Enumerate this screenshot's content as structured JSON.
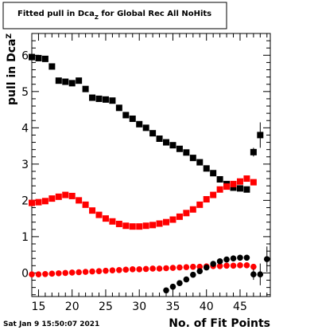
{
  "title_box": {
    "main": "Fitted pull in Dca",
    "sub": "Z",
    "rest": "  for Global Rec All NoHits"
  },
  "datestamp": "Sat Jan  9 15:50:07 2021",
  "chart_data": {
    "type": "scatter",
    "title": "Fitted pull in Dca_Z  for Global Rec All NoHits",
    "xlabel": "No. of Fit Points",
    "ylabel": "pull in Dca",
    "ylabel_sub": "Z",
    "xlim": [
      14,
      49.5
    ],
    "ylim": [
      -0.65,
      6.6
    ],
    "xticks": [
      15,
      20,
      25,
      30,
      35,
      40,
      45
    ],
    "yticks": [
      0,
      1,
      2,
      3,
      4,
      5,
      6
    ],
    "grid": false,
    "colors": {
      "black": "#000000",
      "red": "#ff0000"
    },
    "series": [
      {
        "marker": "square",
        "color": "#000000",
        "x": [
          14,
          15,
          16,
          17,
          18,
          19,
          20,
          21,
          22,
          23,
          24,
          25,
          26,
          27,
          28,
          29,
          30,
          31,
          32,
          33,
          34,
          35,
          36,
          37,
          38,
          39,
          40,
          41,
          42,
          43,
          44,
          45,
          46,
          47,
          48
        ],
        "y": [
          5.95,
          5.92,
          5.9,
          5.69,
          5.3,
          5.27,
          5.23,
          5.3,
          5.07,
          4.83,
          4.8,
          4.78,
          4.75,
          4.55,
          4.35,
          4.25,
          4.1,
          4.0,
          3.85,
          3.7,
          3.6,
          3.52,
          3.42,
          3.32,
          3.17,
          3.05,
          2.88,
          2.75,
          2.58,
          2.45,
          2.35,
          2.33,
          2.3,
          3.33,
          3.8
        ],
        "yerr": [
          0,
          0,
          0,
          0,
          0,
          0,
          0,
          0,
          0,
          0,
          0,
          0,
          0,
          0,
          0,
          0,
          0,
          0,
          0,
          0,
          0,
          0,
          0,
          0,
          0,
          0,
          0,
          0,
          0,
          0,
          0,
          0,
          0,
          0.12,
          0.35
        ]
      },
      {
        "marker": "square",
        "color": "#ff0000",
        "x": [
          14,
          15,
          16,
          17,
          18,
          19,
          20,
          21,
          22,
          23,
          24,
          25,
          26,
          27,
          28,
          29,
          30,
          31,
          32,
          33,
          34,
          35,
          36,
          37,
          38,
          39,
          40,
          41,
          42,
          43,
          44,
          45,
          46,
          47
        ],
        "y": [
          1.93,
          1.95,
          1.98,
          2.05,
          2.1,
          2.15,
          2.12,
          2.0,
          1.88,
          1.72,
          1.6,
          1.5,
          1.42,
          1.35,
          1.3,
          1.28,
          1.28,
          1.3,
          1.32,
          1.36,
          1.4,
          1.47,
          1.55,
          1.65,
          1.75,
          1.88,
          2.03,
          2.15,
          2.3,
          2.38,
          2.45,
          2.52,
          2.6,
          2.5
        ],
        "yerr": []
      },
      {
        "marker": "circle",
        "color": "#ff0000",
        "x": [
          14,
          15,
          16,
          17,
          18,
          19,
          20,
          21,
          22,
          23,
          24,
          25,
          26,
          27,
          28,
          29,
          30,
          31,
          32,
          33,
          34,
          35,
          36,
          37,
          38,
          39,
          40,
          41,
          42,
          43,
          44,
          45,
          46,
          47
        ],
        "y": [
          -0.04,
          -0.04,
          -0.03,
          -0.02,
          -0.01,
          0.0,
          0.01,
          0.02,
          0.03,
          0.04,
          0.05,
          0.06,
          0.07,
          0.08,
          0.09,
          0.1,
          0.1,
          0.11,
          0.12,
          0.12,
          0.13,
          0.14,
          0.15,
          0.16,
          0.17,
          0.17,
          0.18,
          0.19,
          0.19,
          0.2,
          0.2,
          0.21,
          0.21,
          0.17
        ],
        "yerr": []
      },
      {
        "marker": "circle",
        "color": "#000000",
        "x": [
          34,
          35,
          36,
          37,
          38,
          39,
          40,
          41,
          42,
          43,
          44,
          45,
          46,
          47,
          48,
          49
        ],
        "y": [
          -0.48,
          -0.38,
          -0.28,
          -0.18,
          -0.05,
          0.05,
          0.15,
          0.25,
          0.32,
          0.37,
          0.4,
          0.42,
          0.42,
          -0.04,
          -0.04,
          0.38
        ],
        "yerr": [
          0,
          0,
          0,
          0,
          0,
          0,
          0,
          0,
          0,
          0,
          0,
          0,
          0,
          0.15,
          0.3,
          0.35
        ]
      }
    ]
  }
}
